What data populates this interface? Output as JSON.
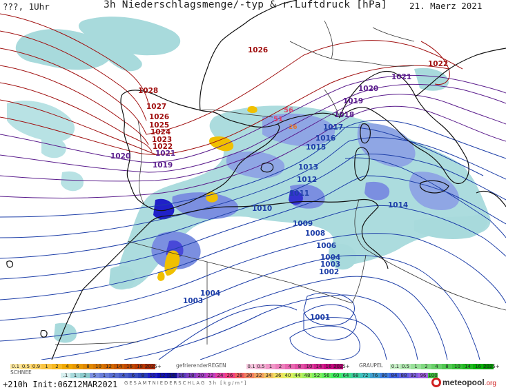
{
  "header": {
    "left": "???, 1Uhr",
    "title": "3h Niederschlagsmenge/-typ & r.Luftdruck [hPa]",
    "date": "21. Maerz 2021"
  },
  "colors": {
    "precip_light": "#a8dadc",
    "precip_blue": "#7b8fe0",
    "precip_dark": "#2020c8",
    "snow": "#f0c000",
    "freezing": "#e060a0",
    "graupel": "#40c040",
    "isobar_high": "#a01010",
    "isobar_mid": "#5a1c8c",
    "isobar_low": "#1e3fa8",
    "coast": "#111111"
  },
  "isobar_labels": [
    {
      "text": "1026",
      "tone": "red"
    },
    {
      "text": "1022",
      "tone": "red"
    },
    {
      "text": "1028",
      "tone": "red"
    },
    {
      "text": "1027",
      "tone": "red"
    },
    {
      "text": "1026",
      "tone": "red"
    },
    {
      "text": "1025",
      "tone": "red"
    },
    {
      "text": "1024",
      "tone": "red"
    },
    {
      "text": "1023",
      "tone": "red"
    },
    {
      "text": "1022",
      "tone": "red"
    },
    {
      "text": "1021",
      "tone": "pur"
    },
    {
      "text": "1021",
      "tone": "pur"
    },
    {
      "text": "1020",
      "tone": "pur"
    },
    {
      "text": "1020",
      "tone": "pur"
    },
    {
      "text": "1019",
      "tone": "pur"
    },
    {
      "text": "1019",
      "tone": "pur"
    },
    {
      "text": "1018",
      "tone": "pur"
    },
    {
      "text": "1017",
      "tone": "blu"
    },
    {
      "text": "1016",
      "tone": "blu"
    },
    {
      "text": "1015",
      "tone": "blu"
    },
    {
      "text": "1013",
      "tone": "blu"
    },
    {
      "text": "1012",
      "tone": "blu"
    },
    {
      "text": "1011",
      "tone": "blu"
    },
    {
      "text": "1010",
      "tone": "blu"
    },
    {
      "text": "1014",
      "tone": "blu"
    },
    {
      "text": "1009",
      "tone": "blu"
    },
    {
      "text": "1008",
      "tone": "blu"
    },
    {
      "text": "1006",
      "tone": "blu"
    },
    {
      "text": "1004",
      "tone": "blu"
    },
    {
      "text": "1003",
      "tone": "blu"
    },
    {
      "text": "1002",
      "tone": "blu"
    },
    {
      "text": "1004",
      "tone": "blu"
    },
    {
      "text": "1003",
      "tone": "blu"
    },
    {
      "text": "1001",
      "tone": "blu"
    }
  ],
  "precip_labels": [
    {
      "text": "56",
      "tone": "pink"
    },
    {
      "text": "51",
      "tone": "pink"
    },
    {
      "text": "26",
      "tone": "pink"
    }
  ],
  "legend": {
    "snow_label": "SCHNEE",
    "snow_values": [
      "0.1",
      "0.5",
      "0.9",
      "1",
      "2",
      "4",
      "6",
      "8",
      "10",
      "12",
      "14",
      "16",
      "18",
      "2025+"
    ],
    "freezing_label": "gefrierenderREGEN",
    "freezing_values": [
      "0.1",
      "0.5",
      "1",
      "2",
      "4",
      "8",
      "10",
      "14",
      "16",
      "2025+"
    ],
    "graupel_label": "GRAUPEL",
    "graupel_values": [
      "0.1",
      "0.5",
      "1",
      "2",
      "4",
      "8",
      "10",
      "14",
      "16",
      "2025+"
    ],
    "total_values": [
      ".1",
      "1",
      "2",
      "5",
      "1",
      "2",
      "4",
      "6",
      "8",
      "10",
      "12",
      "14",
      "16",
      "18",
      "20",
      "22",
      "24",
      "26",
      "28",
      "30",
      "32",
      "34",
      "36",
      "40",
      "44",
      "48",
      "52",
      "56",
      "60",
      "64",
      "68",
      "72",
      "76",
      "80",
      "84",
      "88",
      "92",
      "96",
      "100"
    ],
    "total_label": "GESAMTNIEDERSCHLAG 3h [kg/m²]"
  },
  "footer": {
    "init": "+210h Init:06Z12MAR2021",
    "logo_name": "meteopool",
    "logo_tld": ".org"
  }
}
